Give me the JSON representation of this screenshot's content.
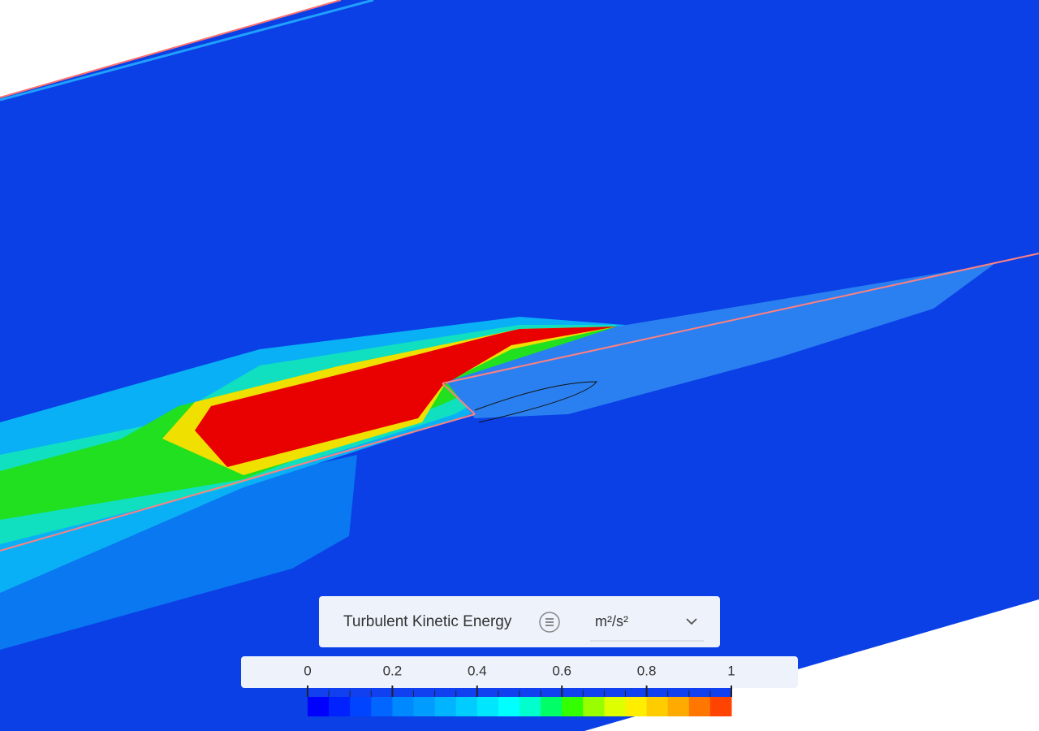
{
  "legend": {
    "title": "Turbulent Kinetic Energy",
    "unit": "m²/s²",
    "min": 0,
    "max": 1,
    "ticks": [
      0,
      0.2,
      0.4,
      0.6,
      0.8,
      1
    ],
    "colors": [
      "#0000ff",
      "#0022ff",
      "#0044ff",
      "#0066ff",
      "#0088ff",
      "#009cff",
      "#00b4ff",
      "#00ccff",
      "#00e6ff",
      "#00ffff",
      "#00ffcc",
      "#00ff66",
      "#33ff00",
      "#99ff00",
      "#ddff00",
      "#ffee00",
      "#ffcc00",
      "#ffaa00",
      "#ff7700",
      "#ff4400"
    ]
  }
}
